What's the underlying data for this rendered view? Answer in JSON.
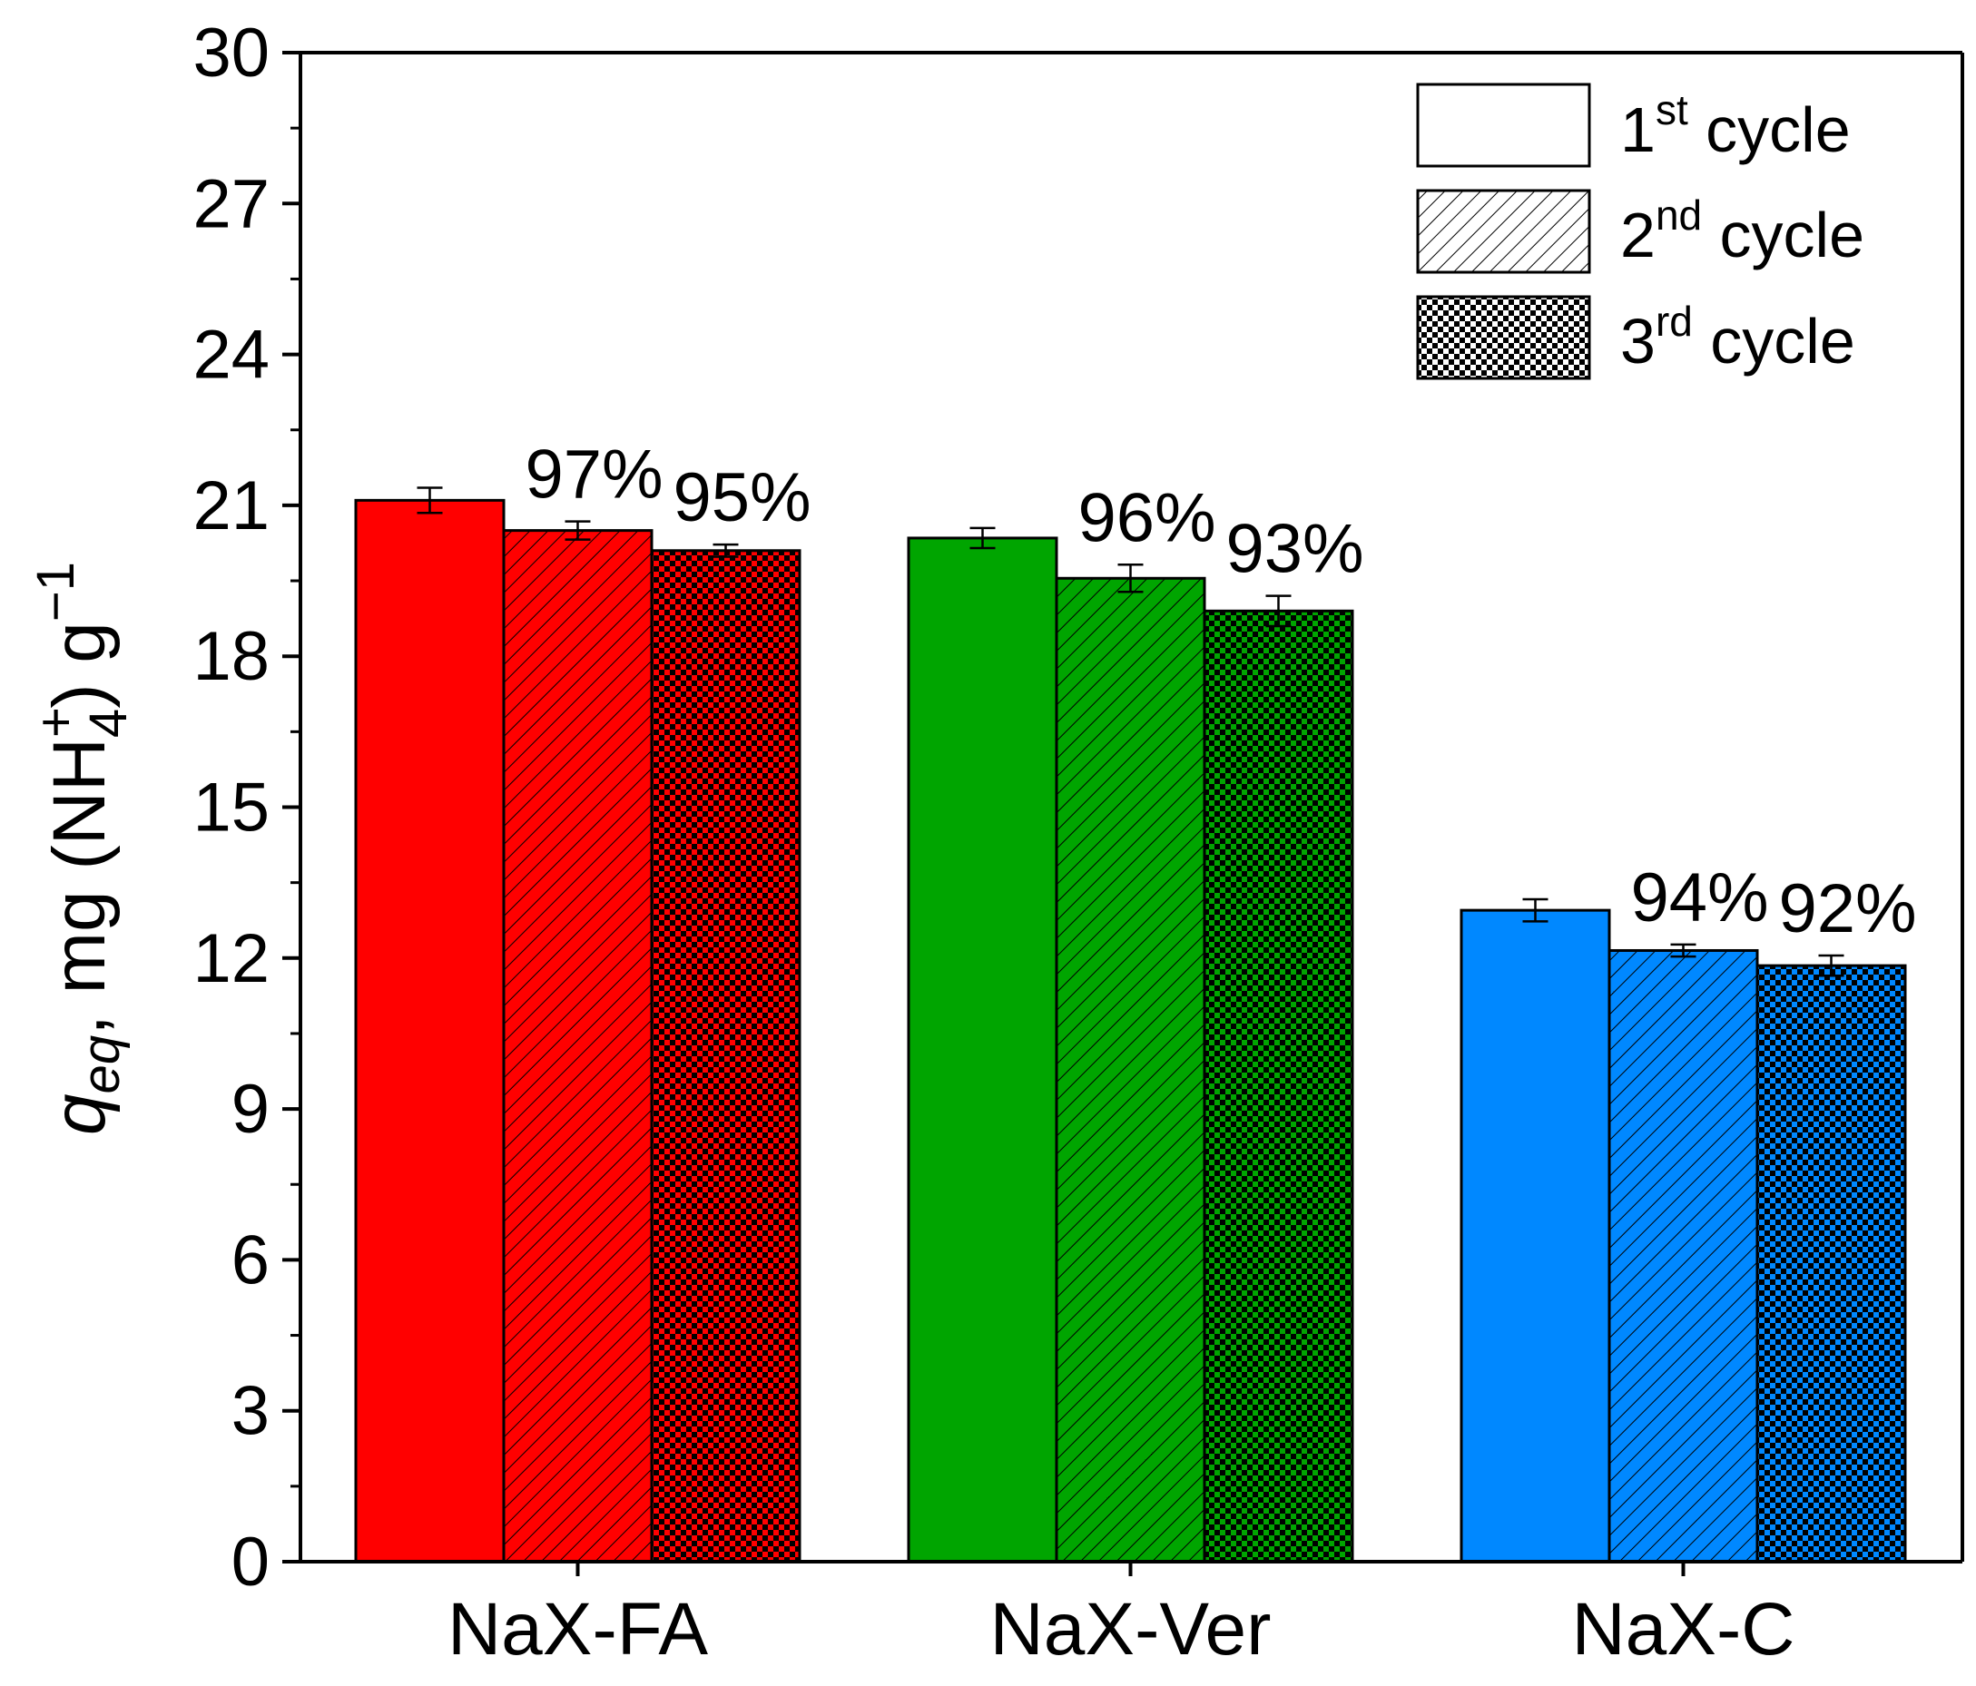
{
  "chart_data": {
    "type": "bar",
    "title": "",
    "xlabel": "",
    "ylabel": {
      "q": "q",
      "q_sub": "eq",
      "unit_prefix": ", mg (NH",
      "ion_sup": "+",
      "ion_sub": "4",
      "unit_suffix": ") g",
      "unit_exp": "−1"
    },
    "ylim": [
      0,
      30
    ],
    "yticks": [
      "0",
      "3",
      "6",
      "9",
      "12",
      "15",
      "18",
      "21",
      "24",
      "27",
      "30"
    ],
    "categories": [
      "NaX-FA",
      "NaX-Ver",
      "NaX-C"
    ],
    "category_colors": [
      "#ff0000",
      "#00a500",
      "#0088ff"
    ],
    "series": [
      {
        "name": "1st cycle",
        "pattern": "solid",
        "values": [
          21.1,
          20.35,
          12.95
        ],
        "errors": [
          0.25,
          0.2,
          0.22
        ]
      },
      {
        "name": "2nd cycle",
        "pattern": "hatch",
        "values": [
          20.5,
          19.55,
          12.15
        ],
        "errors": [
          0.18,
          0.27,
          0.12
        ]
      },
      {
        "name": "3rd cycle",
        "pattern": "checker",
        "values": [
          20.1,
          18.9,
          11.85
        ],
        "errors": [
          0.12,
          0.3,
          0.2
        ]
      }
    ],
    "annotations": [
      {
        "category": 0,
        "series": 1,
        "text": "97%"
      },
      {
        "category": 0,
        "series": 2,
        "text": "95%"
      },
      {
        "category": 1,
        "series": 1,
        "text": "96%"
      },
      {
        "category": 1,
        "series": 2,
        "text": "93%"
      },
      {
        "category": 2,
        "series": 1,
        "text": "94%"
      },
      {
        "category": 2,
        "series": 2,
        "text": "92%"
      }
    ],
    "legend": {
      "position": "top-right",
      "entries": [
        {
          "num": "1",
          "sup": "st",
          "label": " cycle"
        },
        {
          "num": "2",
          "sup": "nd",
          "label": " cycle"
        },
        {
          "num": "3",
          "sup": "rd",
          "label": " cycle"
        }
      ]
    }
  }
}
